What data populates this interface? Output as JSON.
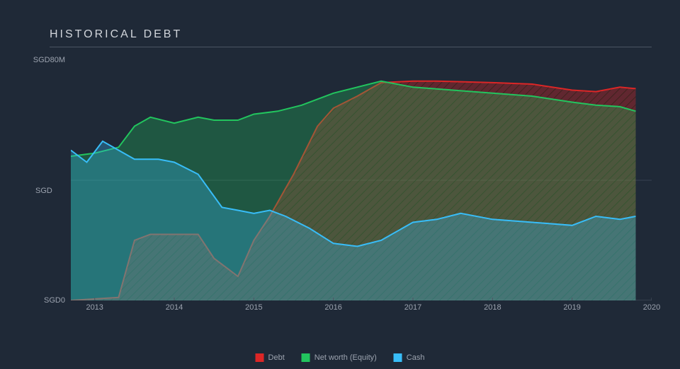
{
  "chart": {
    "type": "area",
    "title": "HISTORICAL DEBT",
    "background_color": "#1f2937",
    "text_color": "#9ca3af",
    "title_color": "#d1d5db",
    "title_fontsize": 16,
    "title_letter_spacing": 3,
    "grid_color": "#374151",
    "axis_color": "#4b5563",
    "ylabel": "",
    "y_title": "SGD",
    "y_ticks": [
      {
        "value": 0,
        "label": "SGD0"
      },
      {
        "value": 40,
        "label": ""
      },
      {
        "value": 80,
        "label": "SGD80M"
      }
    ],
    "ylim": [
      0,
      80
    ],
    "xlim": [
      2012.7,
      2020.0
    ],
    "x_ticks": [
      2013,
      2014,
      2015,
      2016,
      2017,
      2018,
      2019,
      2020
    ],
    "series": [
      {
        "name": "Debt",
        "color": "#dc2626",
        "fill_opacity": 0.35,
        "hatch": true,
        "hatch_color": "#2a2012",
        "stroke_width": 2,
        "data": [
          [
            2012.7,
            0
          ],
          [
            2013.0,
            0.5
          ],
          [
            2013.3,
            1
          ],
          [
            2013.5,
            20
          ],
          [
            2013.7,
            22
          ],
          [
            2014.0,
            22
          ],
          [
            2014.3,
            22
          ],
          [
            2014.5,
            14
          ],
          [
            2014.8,
            8
          ],
          [
            2015.0,
            20
          ],
          [
            2015.2,
            28
          ],
          [
            2015.5,
            42
          ],
          [
            2015.8,
            58
          ],
          [
            2016.0,
            64
          ],
          [
            2016.3,
            68
          ],
          [
            2016.6,
            72.5
          ],
          [
            2017.0,
            73
          ],
          [
            2017.3,
            73
          ],
          [
            2017.6,
            72.8
          ],
          [
            2018.0,
            72.5
          ],
          [
            2018.5,
            72
          ],
          [
            2019.0,
            70
          ],
          [
            2019.3,
            69.5
          ],
          [
            2019.6,
            71
          ],
          [
            2019.8,
            70.5
          ]
        ]
      },
      {
        "name": "Net worth (Equity)",
        "color": "#22c55e",
        "fill_opacity": 0.3,
        "hatch": false,
        "stroke_width": 2,
        "data": [
          [
            2012.7,
            48
          ],
          [
            2013.0,
            49
          ],
          [
            2013.3,
            51
          ],
          [
            2013.5,
            58
          ],
          [
            2013.7,
            61
          ],
          [
            2014.0,
            59
          ],
          [
            2014.3,
            61
          ],
          [
            2014.5,
            60
          ],
          [
            2014.8,
            60
          ],
          [
            2015.0,
            62
          ],
          [
            2015.3,
            63
          ],
          [
            2015.6,
            65
          ],
          [
            2016.0,
            69
          ],
          [
            2016.3,
            71
          ],
          [
            2016.6,
            73
          ],
          [
            2017.0,
            71
          ],
          [
            2017.5,
            70
          ],
          [
            2018.0,
            69
          ],
          [
            2018.5,
            68
          ],
          [
            2019.0,
            66
          ],
          [
            2019.3,
            65
          ],
          [
            2019.6,
            64.5
          ],
          [
            2019.8,
            63
          ]
        ]
      },
      {
        "name": "Cash",
        "color": "#38bdf8",
        "fill_opacity": 0.3,
        "hatch": false,
        "stroke_width": 2,
        "data": [
          [
            2012.7,
            50
          ],
          [
            2012.9,
            46
          ],
          [
            2013.1,
            53
          ],
          [
            2013.3,
            50
          ],
          [
            2013.5,
            47
          ],
          [
            2013.8,
            47
          ],
          [
            2014.0,
            46
          ],
          [
            2014.3,
            42
          ],
          [
            2014.6,
            31
          ],
          [
            2014.8,
            30
          ],
          [
            2015.0,
            29
          ],
          [
            2015.2,
            30
          ],
          [
            2015.4,
            28
          ],
          [
            2015.7,
            24
          ],
          [
            2016.0,
            19
          ],
          [
            2016.3,
            18
          ],
          [
            2016.6,
            20
          ],
          [
            2017.0,
            26
          ],
          [
            2017.3,
            27
          ],
          [
            2017.6,
            29
          ],
          [
            2018.0,
            27
          ],
          [
            2018.5,
            26
          ],
          [
            2019.0,
            25
          ],
          [
            2019.3,
            28
          ],
          [
            2019.6,
            27
          ],
          [
            2019.8,
            28
          ]
        ]
      }
    ],
    "legend": [
      {
        "label": "Debt",
        "color": "#dc2626"
      },
      {
        "label": "Net worth (Equity)",
        "color": "#22c55e"
      },
      {
        "label": "Cash",
        "color": "#38bdf8"
      }
    ]
  }
}
